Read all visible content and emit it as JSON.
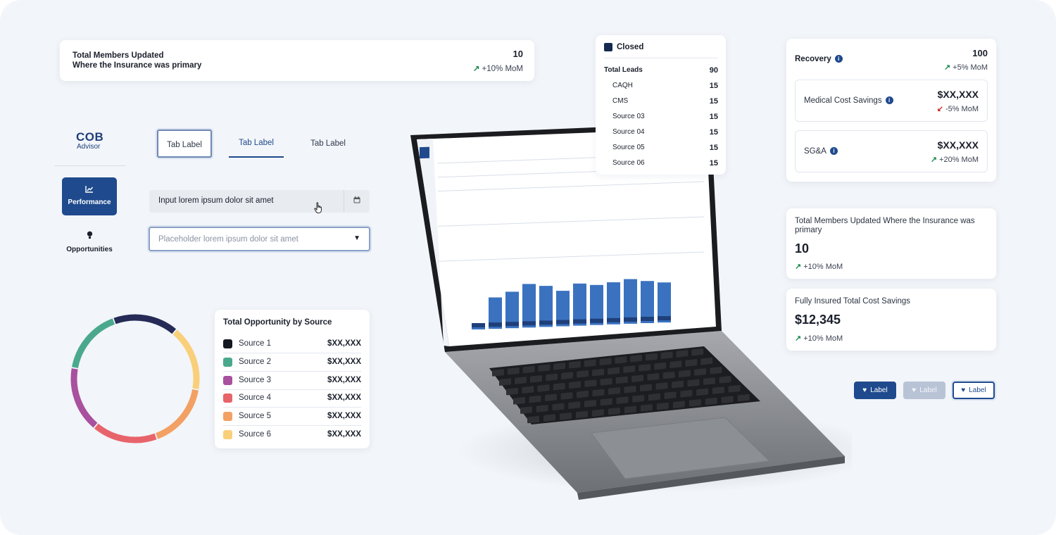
{
  "members_card": {
    "title_line1": "Total Members Updated",
    "title_line2": "Where the Insurance was primary",
    "value": "10",
    "trend": "+10% MoM",
    "trend_direction": "up"
  },
  "sidebar": {
    "logo_main": "COB",
    "logo_sub": "Advisor",
    "items": [
      {
        "label": "Performance",
        "icon": "chart-icon",
        "active": true
      },
      {
        "label": "Opportunities",
        "icon": "lightbulb-icon",
        "active": false
      }
    ]
  },
  "tabs": [
    {
      "label": "Tab Label",
      "state": "focused"
    },
    {
      "label": "Tab Label",
      "state": "selected"
    },
    {
      "label": "Tab Label",
      "state": "default"
    }
  ],
  "inputs": {
    "filled_value": "Input lorem ipsum dolor sit amet",
    "select_placeholder": "Placeholder lorem ipsum dolor sit amet"
  },
  "opportunity": {
    "title": "Total Opportunity by Source",
    "rows": [
      {
        "name": "Source 1",
        "value": "$XX,XXX",
        "color": "#141820"
      },
      {
        "name": "Source 2",
        "value": "$XX,XXX",
        "color": "#4aa98c"
      },
      {
        "name": "Source 3",
        "value": "$XX,XXX",
        "color": "#a9509e"
      },
      {
        "name": "Source 4",
        "value": "$XX,XXX",
        "color": "#e7646a"
      },
      {
        "name": "Source 5",
        "value": "$XX,XXX",
        "color": "#f3a064"
      },
      {
        "name": "Source 6",
        "value": "$XX,XXX",
        "color": "#f9cf7a"
      }
    ],
    "donut_colors": [
      "#252a56",
      "#f9cf7a",
      "#f3a064",
      "#e7646a",
      "#a9509e",
      "#4aa98c"
    ]
  },
  "closed": {
    "label": "Closed",
    "total_label": "Total Leads",
    "total_value": "90",
    "rows": [
      {
        "name": "CAQH",
        "value": "15"
      },
      {
        "name": "CMS",
        "value": "15"
      },
      {
        "name": "Source 03",
        "value": "15"
      },
      {
        "name": "Source 04",
        "value": "15"
      },
      {
        "name": "Source 05",
        "value": "15"
      },
      {
        "name": "Source 06",
        "value": "15"
      }
    ]
  },
  "recovery": {
    "title": "Recovery",
    "value": "100",
    "trend": "+5% MoM",
    "items": [
      {
        "label": "Medical Cost Savings",
        "value": "$XX,XXX",
        "trend": "-5% MoM",
        "direction": "down"
      },
      {
        "label": "SG&A",
        "value": "$XX,XXX",
        "trend": "+20% MoM",
        "direction": "up"
      }
    ]
  },
  "kpi_members": {
    "title": "Total Members Updated Where the Insurance was primary",
    "value": "10",
    "trend": "+10% MoM"
  },
  "kpi_savings": {
    "title": "Fully Insured Total Cost Savings",
    "value": "$12,345",
    "trend": "+10% MoM"
  },
  "buttons": [
    {
      "label": "Label",
      "variant": "primary"
    },
    {
      "label": "Label",
      "variant": "disabled"
    },
    {
      "label": "Label",
      "variant": "outline"
    }
  ],
  "laptop_screen": {
    "bar_levels": [
      0.08,
      0.62,
      0.72,
      0.86,
      0.81,
      0.7,
      0.83,
      0.79,
      0.83,
      0.88,
      0.83,
      0.79
    ]
  },
  "colors": {
    "primary": "#1f4a8d",
    "up": "#1e8a4e",
    "down": "#c62828",
    "bar": "#3b72c0"
  }
}
